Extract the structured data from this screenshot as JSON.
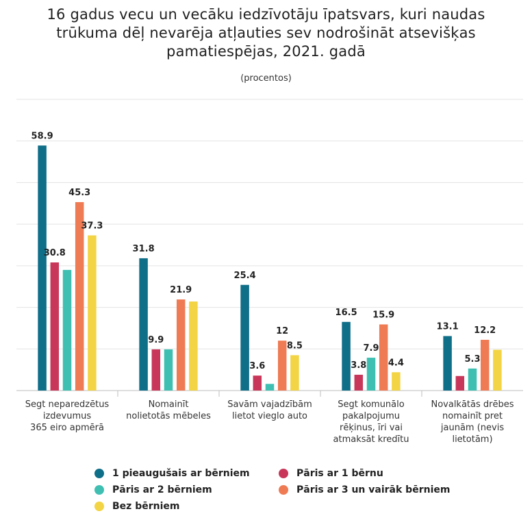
{
  "title_lines": [
    "16 gadus vecu un vecāku iedzīvotāju īpatsvars, kuri naudas",
    "trūkuma dēļ nevarēja atļauties sev nodrošināt atsevišķas",
    "pamatiespējas, 2021. gadā"
  ],
  "subtitle": "(procentos)",
  "chart_data": {
    "type": "bar",
    "title": "16 gadus vecu un vecāku iedzīvotāju īpatsvars, kuri naudas trūkuma dēļ nevarēja atļauties sev nodrošināt atsevišķas pamatiespējas, 2021. gadā",
    "subtitle": "(procentos)",
    "categories": [
      [
        "Segt neparedzētus",
        "izdevumus",
        "365 eiro apmērā"
      ],
      [
        "Nomainīt",
        "nolietotās mēbeles"
      ],
      [
        "Savām vajadzībām",
        "lietot vieglo auto"
      ],
      [
        "Segt komunālo",
        "pakalpojumu",
        "rēķinus, īri vai",
        "atmaksāt kredītu"
      ],
      [
        "Novalkātās drēbes",
        "nomainīt pret",
        "jaunām (nevis",
        "lietotām)"
      ]
    ],
    "series": [
      {
        "name": "1 pieaugušais ar bērniem",
        "color": "#0f6e88",
        "values": [
          58.9,
          31.8,
          25.4,
          16.5,
          13.1
        ],
        "labels": [
          "58.9",
          "31.8",
          "25.4",
          "16.5",
          "13.1"
        ]
      },
      {
        "name": "Pāris ar 1 bērnu",
        "color": "#c8375a",
        "values": [
          30.8,
          9.9,
          3.6,
          3.8,
          3.5
        ],
        "labels": [
          "30.8",
          "9.9",
          "3.6",
          "3.8",
          ""
        ]
      },
      {
        "name": "Pāris ar 2 bērniem",
        "color": "#3fbfb2",
        "values": [
          29.0,
          9.9,
          1.6,
          7.9,
          5.3
        ],
        "labels": [
          "",
          "",
          "",
          "7.9",
          "5.3"
        ]
      },
      {
        "name": "Pāris ar 3 un vairāk bērniem",
        "color": "#ef7b54",
        "values": [
          45.3,
          21.9,
          12,
          15.9,
          12.2
        ],
        "labels": [
          "45.3",
          "21.9",
          "12",
          "15.9",
          "12.2"
        ]
      },
      {
        "name": "Bez bērniem",
        "color": "#f2d444",
        "values": [
          37.3,
          21.4,
          8.5,
          4.4,
          9.8
        ],
        "labels": [
          "37.3",
          "",
          "8.5",
          "4.4",
          ""
        ]
      }
    ],
    "ylim": [
      0,
      70
    ],
    "grid": true,
    "legend_position": "bottom"
  }
}
